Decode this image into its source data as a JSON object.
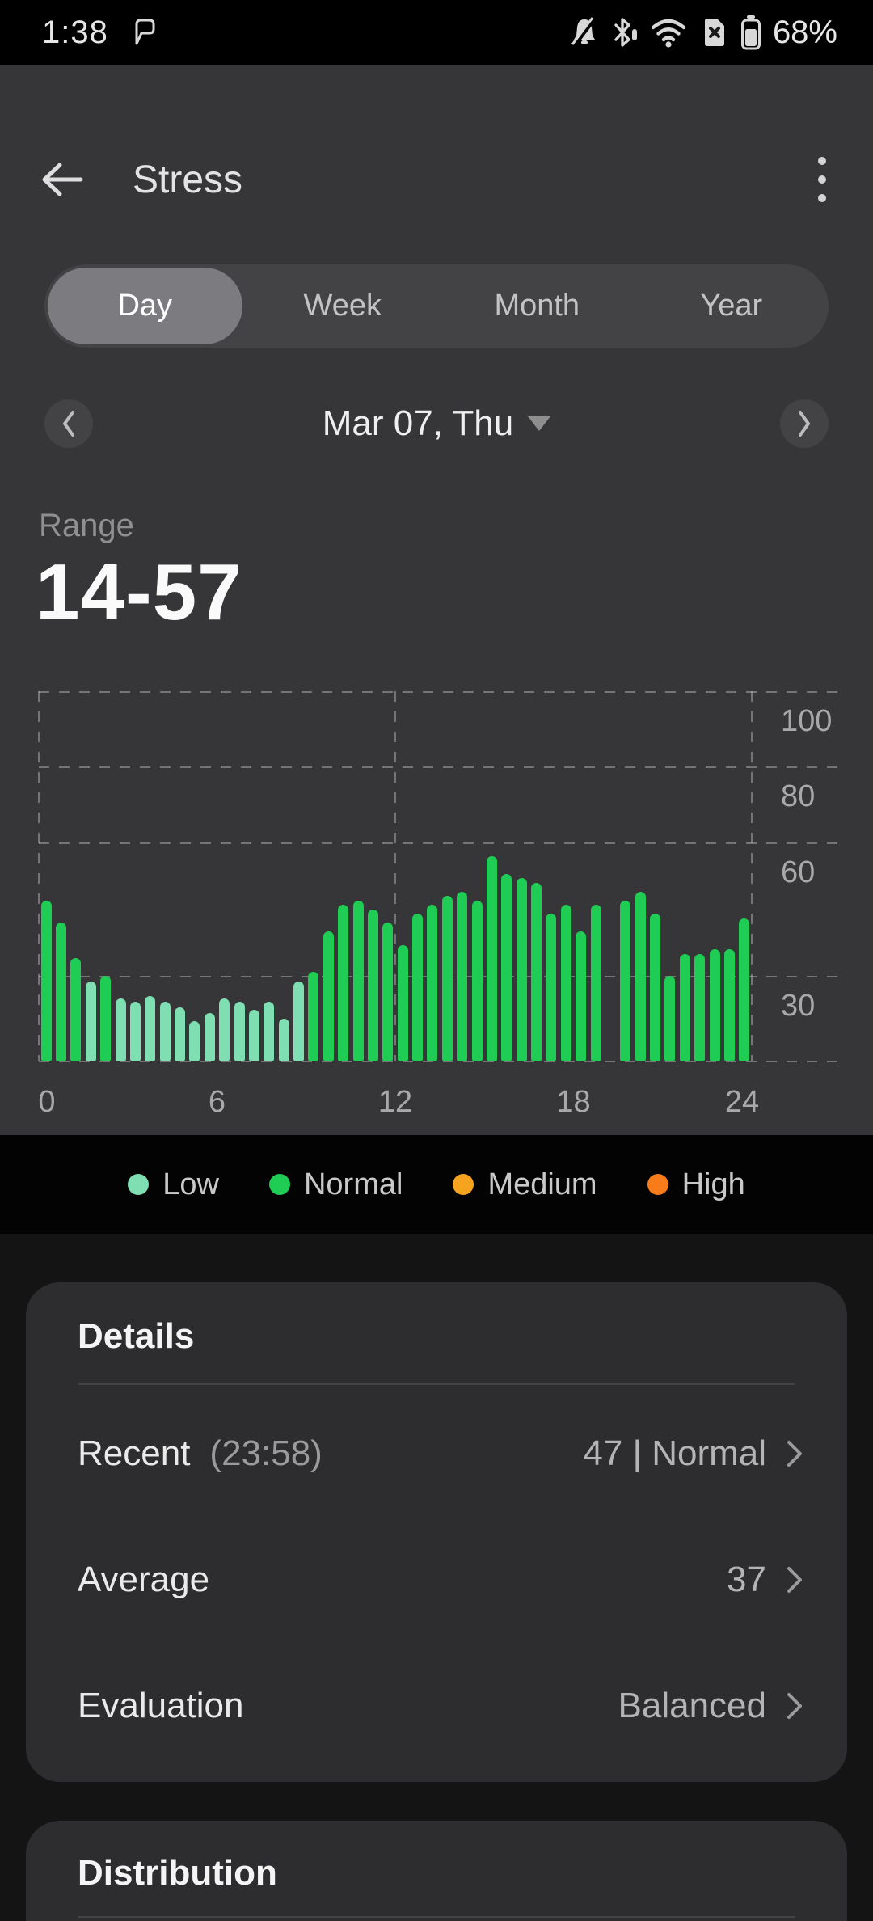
{
  "status_bar": {
    "time": "1:38",
    "battery_percent": "68%",
    "icons": [
      "chat-icon",
      "bell-muted-icon",
      "bluetooth-icon",
      "wifi-icon",
      "sim-missing-icon",
      "battery-icon"
    ]
  },
  "header": {
    "title": "Stress"
  },
  "tabs": {
    "items": [
      "Day",
      "Week",
      "Month",
      "Year"
    ],
    "selected": "Day"
  },
  "date_nav": {
    "label": "Mar 07, Thu"
  },
  "summary": {
    "label": "Range",
    "value": "14-57"
  },
  "chart_data": {
    "type": "bar",
    "title": "Stress level by 30-minute interval (0-24h)",
    "interval_hours": 0.5,
    "values": [
      47,
      42,
      34,
      28,
      30,
      22,
      21,
      23,
      21,
      19,
      14,
      17,
      22,
      21,
      18,
      21,
      15,
      28,
      31,
      40,
      46,
      47,
      45,
      42,
      37,
      44,
      46,
      48,
      49,
      47,
      57,
      53,
      52,
      51,
      44,
      46,
      40,
      46,
      null,
      47,
      49,
      44,
      30,
      35,
      35,
      36,
      36,
      43
    ],
    "low_threshold": 30,
    "ylim": [
      0,
      100
    ],
    "gridline_values": [
      100,
      80,
      60,
      30,
      0
    ],
    "ytick_labels": [
      "100",
      "80",
      "60",
      "30"
    ],
    "xtick_hours": [
      0,
      6,
      12,
      18,
      24
    ],
    "xtick_labels": [
      "0",
      "6",
      "12",
      "18",
      "24"
    ],
    "vertical_gridline_hours": [
      0,
      12,
      24
    ],
    "colors": {
      "low": "#7fdfb2",
      "normal": "#1fcd55",
      "medium": "#f6a41f",
      "high": "#f87d1a"
    },
    "legend_position": "bottom",
    "grid": true
  },
  "legend": {
    "items": [
      {
        "label": "Low",
        "color": "#7fdfb2"
      },
      {
        "label": "Normal",
        "color": "#1fcd55"
      },
      {
        "label": "Medium",
        "color": "#f6a41f"
      },
      {
        "label": "High",
        "color": "#f87d1a"
      }
    ]
  },
  "details": {
    "title": "Details",
    "rows": [
      {
        "label": "Recent",
        "sub": "(23:58)",
        "value": "47 | Normal"
      },
      {
        "label": "Average",
        "sub": "",
        "value": "37"
      },
      {
        "label": "Evaluation",
        "sub": "",
        "value": "Balanced"
      }
    ]
  },
  "distribution": {
    "title": "Distribution"
  }
}
